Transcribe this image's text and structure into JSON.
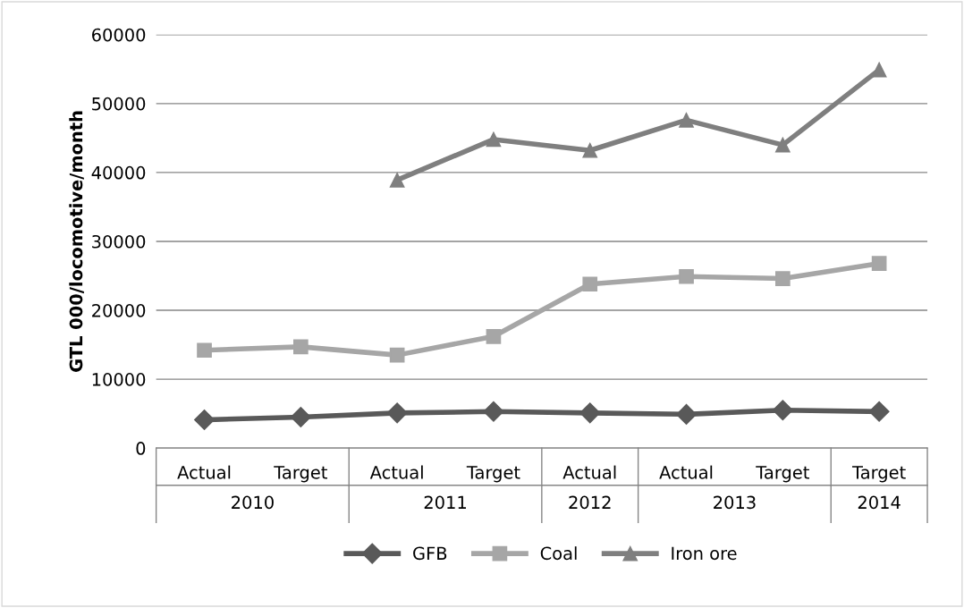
{
  "chart_data": {
    "type": "line",
    "ylabel": "GTL 000/locomotive/month",
    "categories": [
      "Actual",
      "Target",
      "Actual",
      "Target",
      "Actual",
      "Actual",
      "Target",
      "Target"
    ],
    "annotations": [
      "2010",
      "2011",
      "2012",
      "2013",
      "2014"
    ],
    "series": [
      {
        "name": "GFB",
        "color": "#595959",
        "marker": "diamond",
        "values": [
          4100,
          4500,
          5100,
          5300,
          5100,
          4900,
          5500,
          5300
        ]
      },
      {
        "name": "Coal",
        "color": "#a6a6a6",
        "marker": "square",
        "values": [
          14200,
          14700,
          13500,
          16200,
          23800,
          24900,
          24600,
          26800
        ]
      },
      {
        "name": "Iron ore",
        "color": "#7f7f7f",
        "marker": "triangle",
        "values": [
          null,
          null,
          38900,
          44800,
          43200,
          47600,
          44000,
          54900
        ]
      }
    ],
    "ylim": [
      0,
      60000
    ],
    "yticks": [
      0,
      10000,
      20000,
      30000,
      40000,
      50000,
      60000
    ],
    "grid": "y",
    "legend": "bottom",
    "line_style": "solid"
  }
}
